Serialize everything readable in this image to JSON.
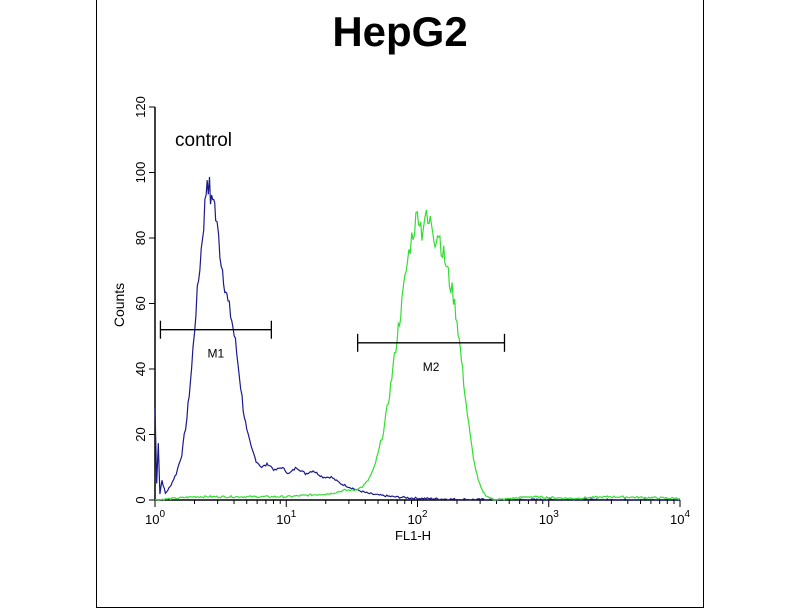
{
  "chart_data": {
    "type": "line",
    "title": "HepG2",
    "xlabel": "FL1-H",
    "ylabel": "Counts",
    "x_scale": "log",
    "xlim": [
      1,
      10000
    ],
    "ylim": [
      0,
      120
    ],
    "x_ticks": [
      {
        "base": "10",
        "exp": "0",
        "value": 1
      },
      {
        "base": "10",
        "exp": "1",
        "value": 10
      },
      {
        "base": "10",
        "exp": "2",
        "value": 100
      },
      {
        "base": "10",
        "exp": "3",
        "value": 1000
      },
      {
        "base": "10",
        "exp": "4",
        "value": 10000
      }
    ],
    "y_ticks": [
      "0",
      "20",
      "40",
      "60",
      "80",
      "100",
      "120"
    ],
    "grid": false,
    "annotation": "control",
    "series": [
      {
        "color": "#1a1a8c",
        "points": [
          [
            1.0,
            28
          ],
          [
            1.03,
            5
          ],
          [
            1.06,
            18
          ],
          [
            1.09,
            2
          ],
          [
            1.13,
            6
          ],
          [
            1.2,
            2
          ],
          [
            1.3,
            4
          ],
          [
            1.45,
            8
          ],
          [
            1.6,
            14
          ],
          [
            1.75,
            25
          ],
          [
            1.9,
            40
          ],
          [
            2.05,
            58
          ],
          [
            2.2,
            72
          ],
          [
            2.35,
            85
          ],
          [
            2.5,
            99
          ],
          [
            2.6,
            95
          ],
          [
            2.7,
            90
          ],
          [
            2.8,
            94
          ],
          [
            2.9,
            86
          ],
          [
            3.05,
            80
          ],
          [
            3.2,
            73
          ],
          [
            3.4,
            66
          ],
          [
            3.6,
            60
          ],
          [
            3.85,
            55
          ],
          [
            4.1,
            48
          ],
          [
            4.4,
            38
          ],
          [
            4.7,
            28
          ],
          [
            5.0,
            21
          ],
          [
            5.4,
            16
          ],
          [
            5.9,
            12
          ],
          [
            6.5,
            10
          ],
          [
            7.3,
            11
          ],
          [
            8.2,
            9
          ],
          [
            9.2,
            10
          ],
          [
            10.5,
            8
          ],
          [
            12,
            10
          ],
          [
            14,
            8
          ],
          [
            16,
            9
          ],
          [
            19,
            7
          ],
          [
            22,
            7
          ],
          [
            26,
            5
          ],
          [
            30,
            4
          ],
          [
            35,
            3
          ],
          [
            42,
            2
          ],
          [
            50,
            1.5
          ],
          [
            65,
            1
          ],
          [
            90,
            0.6
          ],
          [
            130,
            0.4
          ],
          [
            200,
            0.2
          ],
          [
            400,
            0.1
          ],
          [
            10000,
            0
          ]
        ]
      },
      {
        "color": "#33dd33",
        "points": [
          [
            1.0,
            0
          ],
          [
            2,
            1
          ],
          [
            5,
            1
          ],
          [
            10,
            1
          ],
          [
            15,
            1.5
          ],
          [
            22,
            2
          ],
          [
            28,
            3
          ],
          [
            33,
            3
          ],
          [
            38,
            4
          ],
          [
            42,
            6
          ],
          [
            46,
            9
          ],
          [
            50,
            14
          ],
          [
            55,
            21
          ],
          [
            60,
            30
          ],
          [
            65,
            40
          ],
          [
            70,
            50
          ],
          [
            76,
            60
          ],
          [
            82,
            70
          ],
          [
            88,
            78
          ],
          [
            95,
            84
          ],
          [
            102,
            88
          ],
          [
            108,
            82
          ],
          [
            114,
            87
          ],
          [
            120,
            84
          ],
          [
            128,
            85
          ],
          [
            136,
            80
          ],
          [
            145,
            82
          ],
          [
            155,
            76
          ],
          [
            165,
            72
          ],
          [
            175,
            67
          ],
          [
            188,
            62
          ],
          [
            200,
            55
          ],
          [
            212,
            46
          ],
          [
            225,
            36
          ],
          [
            240,
            26
          ],
          [
            255,
            18
          ],
          [
            272,
            11
          ],
          [
            290,
            6
          ],
          [
            310,
            3
          ],
          [
            330,
            1.5
          ],
          [
            360,
            0.5
          ],
          [
            400,
            0
          ],
          [
            700,
            1
          ],
          [
            1500,
            0.5
          ],
          [
            3000,
            1
          ],
          [
            10000,
            0.5
          ]
        ]
      }
    ],
    "markers": [
      {
        "label": "M1",
        "x_start": 1.1,
        "x_end": 7.7,
        "y": 52
      },
      {
        "label": "M2",
        "x_start": 35,
        "x_end": 460,
        "y": 48
      }
    ]
  }
}
